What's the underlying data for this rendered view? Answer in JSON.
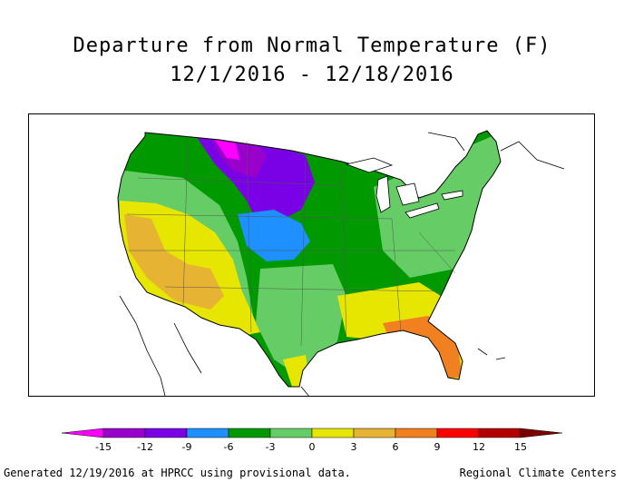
{
  "title": {
    "line1": "Departure from Normal Temperature (F)",
    "line2": "12/1/2016 - 12/18/2016"
  },
  "legend": {
    "ticks": [
      "-15",
      "-12",
      "-9",
      "-6",
      "-3",
      "0",
      "3",
      "6",
      "9",
      "12",
      "15"
    ],
    "colors": [
      "#ff00ff",
      "#9900cc",
      "#7a00e6",
      "#1e90ff",
      "#009900",
      "#66cc66",
      "#e6e600",
      "#e6b333",
      "#f08020",
      "#ff0000",
      "#b30000",
      "#7a0000"
    ]
  },
  "footer": {
    "left": "Generated 12/19/2016 at HPRCC using provisional data.",
    "right": "Regional Climate Centers"
  }
}
